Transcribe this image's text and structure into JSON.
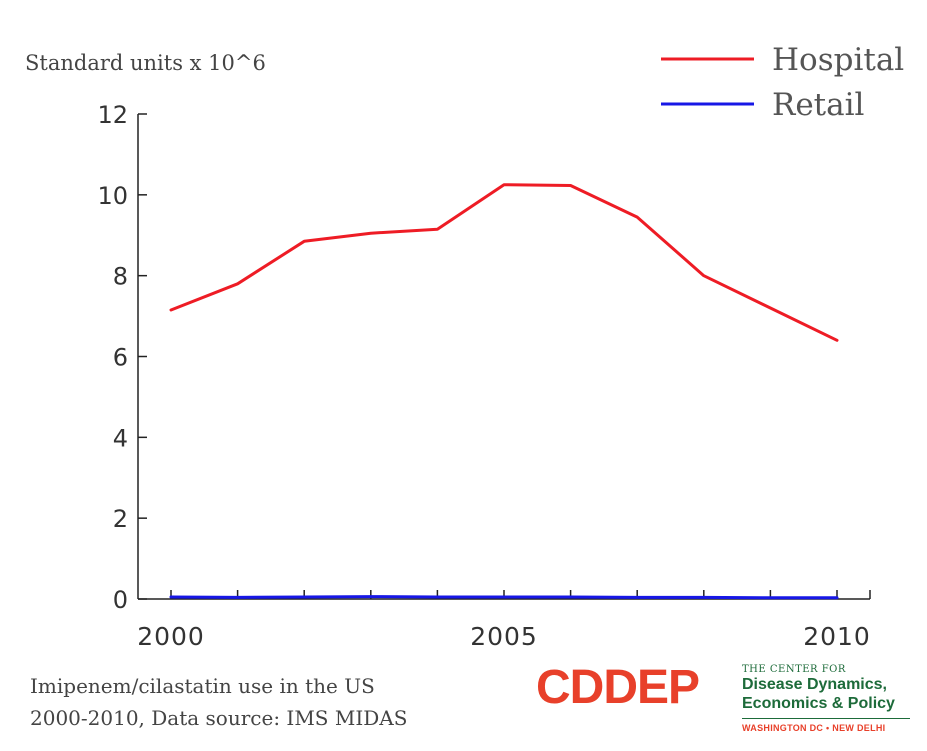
{
  "chart_data": {
    "type": "line",
    "ylabel": "Standard units x 10^6",
    "x": [
      2000,
      2001,
      2002,
      2003,
      2004,
      2005,
      2006,
      2007,
      2008,
      2009,
      2010
    ],
    "series": [
      {
        "name": "Hospital",
        "color": "#ee1c25",
        "values": [
          7.15,
          7.8,
          8.85,
          9.05,
          9.15,
          10.25,
          10.23,
          9.45,
          8.0,
          7.2,
          6.4
        ]
      },
      {
        "name": "Retail",
        "color": "#1717e6",
        "values": [
          0.05,
          0.04,
          0.05,
          0.06,
          0.05,
          0.05,
          0.05,
          0.04,
          0.04,
          0.03,
          0.03
        ]
      }
    ],
    "xlim": [
      2000,
      2010
    ],
    "ylim": [
      0,
      12
    ],
    "yticks": [
      0,
      2,
      4,
      6,
      8,
      10,
      12
    ],
    "xtick_labels": [
      "2000",
      "2005",
      "2010"
    ],
    "xtick_positions": [
      2000,
      2005,
      2010
    ],
    "legend_position": "top-right",
    "grid": false
  },
  "caption": {
    "line1": "Imipenem/cilastatin use in the US",
    "line2": "2000-2010, Data source: IMS MIDAS"
  },
  "logo": {
    "mark": "CDDEP",
    "top_text": "THE CENTER FOR",
    "line1": "Disease Dynamics,",
    "line2": "Economics & Policy",
    "bottom_text": "WASHINGTON DC • NEW DELHI",
    "mark_color": "#e8402a",
    "text_color": "#1d6b3a",
    "accent_color": "#e8402a"
  }
}
